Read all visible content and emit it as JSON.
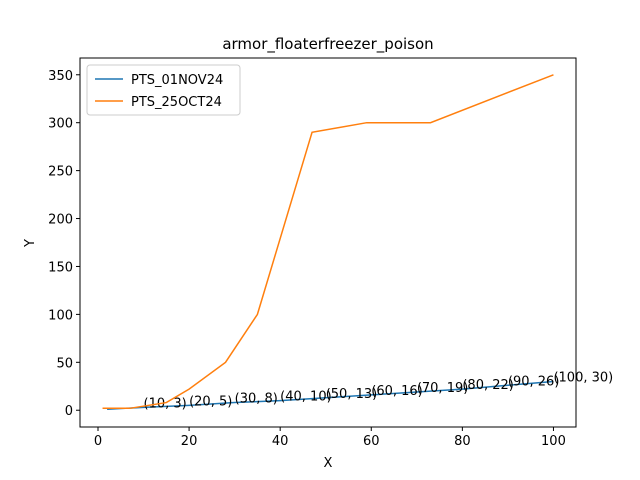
{
  "chart_data": {
    "type": "line",
    "title": "armor_floaterfreezer_poison",
    "x_label": "X",
    "y_label": "Y",
    "xlim": [
      -3.95,
      104.95
    ],
    "ylim": [
      -17.5,
      367.5
    ],
    "xticks": [
      0,
      20,
      40,
      60,
      80,
      100
    ],
    "yticks": [
      0,
      50,
      100,
      150,
      200,
      250,
      300,
      350
    ],
    "legend": "upper left",
    "grid": false,
    "series": [
      {
        "name": "PTS_01NOV24",
        "color": "#1f77b4",
        "x": [
          2,
          10,
          20,
          30,
          40,
          50,
          60,
          70,
          80,
          90,
          100
        ],
        "values": [
          1,
          3,
          5,
          8,
          10,
          13,
          16,
          19,
          22,
          26,
          30
        ],
        "value_labels": [
          null,
          "(10, 3)",
          "(20, 5)",
          "(30, 8)",
          "(40, 10)",
          "(50, 13)",
          "(60, 16)",
          "(70, 19)",
          "(80, 22)",
          "(90, 26)",
          "(100, 30)"
        ]
      },
      {
        "name": "PTS_25OCT24",
        "color": "#ff7f0e",
        "x": [
          1,
          7,
          15,
          20,
          28,
          35,
          47,
          59,
          73,
          100
        ],
        "values": [
          2,
          2,
          8,
          22,
          50,
          100,
          290,
          300,
          300,
          350
        ]
      }
    ]
  }
}
